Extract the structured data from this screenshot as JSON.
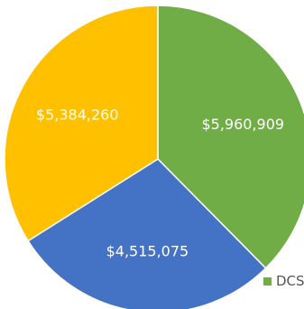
{
  "chart_data": {
    "type": "pie",
    "slices": [
      {
        "label": "$5,960,909",
        "value": 5960909,
        "color": "#70ad47"
      },
      {
        "label": "$4,515,075",
        "value": 4515075,
        "color": "#4472c4"
      },
      {
        "label": "$5,384,260",
        "value": 5384260,
        "color": "#ffc000"
      }
    ],
    "legend": [
      {
        "label": "DCS",
        "color": "#70ad47"
      }
    ],
    "legend_position": "right",
    "start_angle_deg": 0,
    "direction": "clockwise"
  }
}
